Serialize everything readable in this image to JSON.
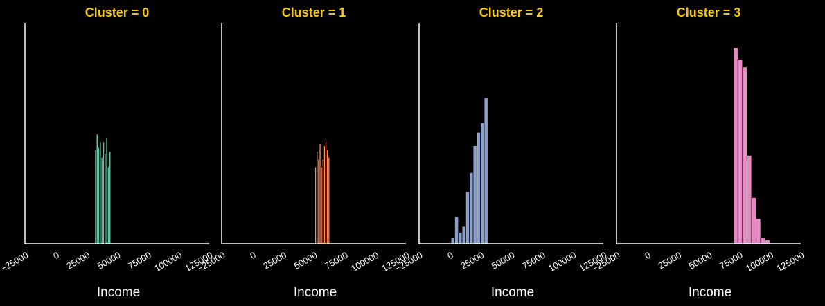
{
  "chart_data": [
    {
      "type": "bar",
      "title": "Cluster = 0",
      "xlabel": "Income",
      "ylabel": "",
      "color": "#66c2a5",
      "xlim": [
        -25000,
        125000
      ],
      "ylim": [
        0,
        115
      ],
      "xticks": [
        "−25000",
        "0",
        "25000",
        "50000",
        "75000",
        "100000",
        "125000"
      ],
      "bin_width": 1300,
      "bins": [
        {
          "x": 32500,
          "value": 49
        },
        {
          "x": 33800,
          "value": 57
        },
        {
          "x": 35100,
          "value": 50
        },
        {
          "x": 36400,
          "value": 53
        },
        {
          "x": 37700,
          "value": 45
        },
        {
          "x": 39000,
          "value": 53
        },
        {
          "x": 40300,
          "value": 47
        },
        {
          "x": 41600,
          "value": 55
        },
        {
          "x": 42900,
          "value": 40
        },
        {
          "x": 44200,
          "value": 48
        }
      ]
    },
    {
      "type": "bar",
      "title": "Cluster = 1",
      "xlabel": "Income",
      "ylabel": "",
      "color": "#fc8d62",
      "xlim": [
        -25000,
        125000
      ],
      "ylim": [
        0,
        115
      ],
      "xticks": [
        "−25000",
        "0",
        "25000",
        "50000",
        "75000",
        "100000",
        "125000"
      ],
      "bin_width": 1200,
      "bins": [
        {
          "x": 51500,
          "value": 40
        },
        {
          "x": 52700,
          "value": 48
        },
        {
          "x": 53900,
          "value": 44
        },
        {
          "x": 55100,
          "value": 52
        },
        {
          "x": 56300,
          "value": 40
        },
        {
          "x": 57500,
          "value": 44
        },
        {
          "x": 58700,
          "value": 51
        },
        {
          "x": 59900,
          "value": 53
        },
        {
          "x": 61100,
          "value": 49
        },
        {
          "x": 62300,
          "value": 45
        }
      ]
    },
    {
      "type": "bar",
      "title": "Cluster = 2",
      "xlabel": "Income",
      "ylabel": "",
      "color": "#8da0cb",
      "xlim": [
        -25000,
        125000
      ],
      "ylim": [
        0,
        115
      ],
      "xticks": [
        "−25000",
        "0",
        "25000",
        "50000",
        "75000",
        "100000",
        "125000"
      ],
      "bin_width": 3000,
      "bins": [
        {
          "x": 2500,
          "value": 3
        },
        {
          "x": 5500,
          "value": 14
        },
        {
          "x": 8500,
          "value": 6
        },
        {
          "x": 11500,
          "value": 9
        },
        {
          "x": 14500,
          "value": 27
        },
        {
          "x": 17500,
          "value": 37
        },
        {
          "x": 20500,
          "value": 51
        },
        {
          "x": 23500,
          "value": 58
        },
        {
          "x": 26500,
          "value": 63
        },
        {
          "x": 29500,
          "value": 76
        }
      ]
    },
    {
      "type": "bar",
      "title": "Cluster = 3",
      "xlabel": "Income",
      "ylabel": "",
      "color": "#e78ac3",
      "xlim": [
        -25000,
        125000
      ],
      "ylim": [
        0,
        115
      ],
      "xticks": [
        "−25000",
        "0",
        "25000",
        "50000",
        "75000",
        "100000",
        "125000"
      ],
      "bin_width": 3700,
      "bins": [
        {
          "x": 72000,
          "value": 102
        },
        {
          "x": 75700,
          "value": 96
        },
        {
          "x": 79400,
          "value": 92
        },
        {
          "x": 83100,
          "value": 46
        },
        {
          "x": 86800,
          "value": 24
        },
        {
          "x": 90500,
          "value": 13
        },
        {
          "x": 94200,
          "value": 3
        },
        {
          "x": 97900,
          "value": 2
        }
      ]
    }
  ],
  "colors": {
    "background": "#000000",
    "axis": "#ffffff",
    "title": "#f5c518",
    "tick_label": "#ffffff",
    "bar_edge": "#000000"
  }
}
